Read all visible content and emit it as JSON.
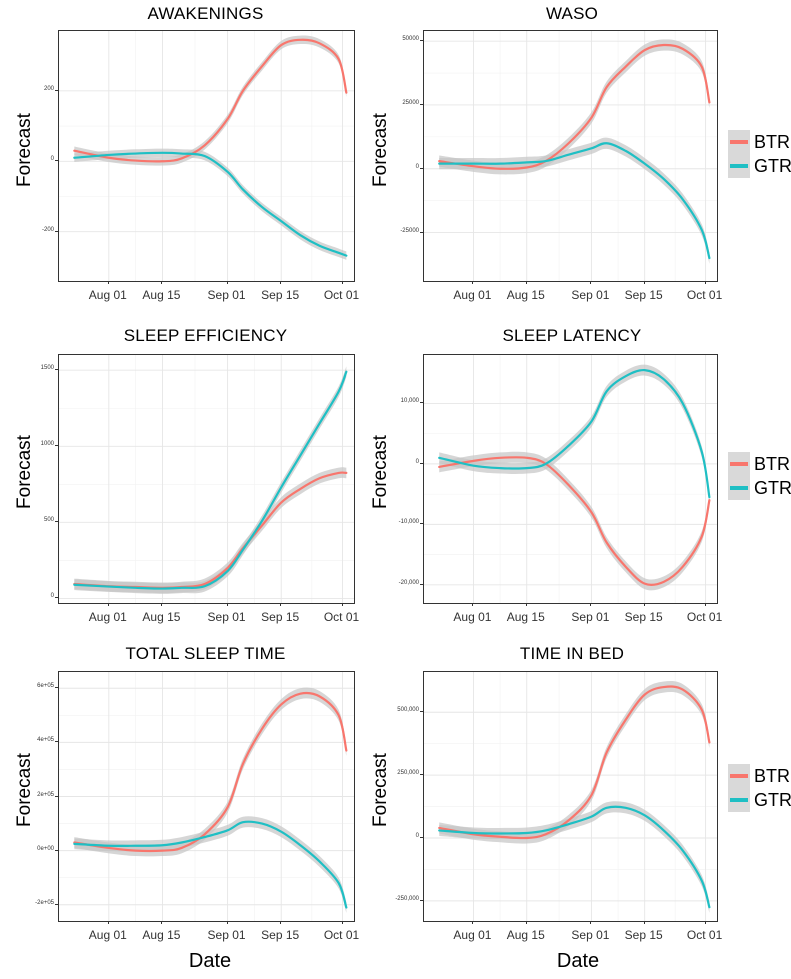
{
  "colors": {
    "BTR": "#f8766d",
    "GTR": "#1fbfc4",
    "band": "#c4c4c4"
  },
  "legend": {
    "items": [
      "BTR",
      "GTR"
    ]
  },
  "x_axis_title": "Date",
  "y_axis_title": "Forecast",
  "x_ticks": [
    "Aug 01",
    "Aug 15",
    "Sep 01",
    "Sep 15",
    "Oct 01"
  ],
  "chart_data": [
    {
      "type": "line",
      "title": "AWAKENINGS",
      "ylabel": "Forecast",
      "xlabel": "",
      "xlim": [
        "2015-07-19",
        "2015-10-04"
      ],
      "ylim": [
        -340,
        370
      ],
      "yticks": [
        {
          "v": -200,
          "l": "-200"
        },
        {
          "v": 0,
          "l": "0"
        },
        {
          "v": 200,
          "l": "200"
        }
      ],
      "xticks": [
        {
          "v": "2015-08-01",
          "l": "Aug 01"
        },
        {
          "v": "2015-08-15",
          "l": "Aug 15"
        },
        {
          "v": "2015-09-01",
          "l": "Sep 01"
        },
        {
          "v": "2015-09-15",
          "l": "Sep 15"
        },
        {
          "v": "2015-10-01",
          "l": "Oct 01"
        }
      ],
      "band": 12,
      "series": [
        {
          "name": "BTR",
          "points": [
            [
              "2015-07-23",
              30
            ],
            [
              "2015-08-01",
              10
            ],
            [
              "2015-08-08",
              2
            ],
            [
              "2015-08-15",
              0
            ],
            [
              "2015-08-20",
              8
            ],
            [
              "2015-08-26",
              45
            ],
            [
              "2015-09-01",
              120
            ],
            [
              "2015-09-05",
              200
            ],
            [
              "2015-09-10",
              270
            ],
            [
              "2015-09-15",
              330
            ],
            [
              "2015-09-20",
              345
            ],
            [
              "2015-09-25",
              335
            ],
            [
              "2015-09-30",
              290
            ],
            [
              "2015-10-02",
              195
            ]
          ]
        },
        {
          "name": "GTR",
          "points": [
            [
              "2015-07-23",
              10
            ],
            [
              "2015-08-01",
              18
            ],
            [
              "2015-08-08",
              22
            ],
            [
              "2015-08-15",
              24
            ],
            [
              "2015-08-20",
              22
            ],
            [
              "2015-08-26",
              15
            ],
            [
              "2015-09-01",
              -30
            ],
            [
              "2015-09-05",
              -80
            ],
            [
              "2015-09-10",
              -130
            ],
            [
              "2015-09-15",
              -170
            ],
            [
              "2015-09-20",
              -210
            ],
            [
              "2015-09-25",
              -240
            ],
            [
              "2015-09-30",
              -260
            ],
            [
              "2015-10-02",
              -268
            ]
          ]
        }
      ]
    },
    {
      "type": "line",
      "title": "WASO",
      "ylabel": "Forecast",
      "xlabel": "",
      "xlim": [
        "2015-07-19",
        "2015-10-04"
      ],
      "ylim": [
        -44000,
        54000
      ],
      "yticks": [
        {
          "v": -25000,
          "l": "-25000"
        },
        {
          "v": 0,
          "l": "0"
        },
        {
          "v": 25000,
          "l": "25000"
        },
        {
          "v": 50000,
          "l": "50000"
        }
      ],
      "xticks": [
        {
          "v": "2015-08-01",
          "l": "Aug 01"
        },
        {
          "v": "2015-08-15",
          "l": "Aug 15"
        },
        {
          "v": "2015-09-01",
          "l": "Sep 01"
        },
        {
          "v": "2015-09-15",
          "l": "Sep 15"
        },
        {
          "v": "2015-10-01",
          "l": "Oct 01"
        }
      ],
      "band": 2200,
      "series": [
        {
          "name": "BTR",
          "points": [
            [
              "2015-07-23",
              3000
            ],
            [
              "2015-08-01",
              1000
            ],
            [
              "2015-08-08",
              0
            ],
            [
              "2015-08-15",
              500
            ],
            [
              "2015-08-20",
              3000
            ],
            [
              "2015-08-26",
              10000
            ],
            [
              "2015-09-01",
              20000
            ],
            [
              "2015-09-05",
              32000
            ],
            [
              "2015-09-10",
              40000
            ],
            [
              "2015-09-15",
              46500
            ],
            [
              "2015-09-20",
              48500
            ],
            [
              "2015-09-25",
              47000
            ],
            [
              "2015-09-30",
              40000
            ],
            [
              "2015-10-02",
              26000
            ]
          ]
        },
        {
          "name": "GTR",
          "points": [
            [
              "2015-07-23",
              2000
            ],
            [
              "2015-08-01",
              2000
            ],
            [
              "2015-08-08",
              2000
            ],
            [
              "2015-08-15",
              2500
            ],
            [
              "2015-08-20",
              3000
            ],
            [
              "2015-08-26",
              5500
            ],
            [
              "2015-09-01",
              8000
            ],
            [
              "2015-09-05",
              10000
            ],
            [
              "2015-09-10",
              7000
            ],
            [
              "2015-09-15",
              2000
            ],
            [
              "2015-09-20",
              -4000
            ],
            [
              "2015-09-25",
              -12000
            ],
            [
              "2015-09-30",
              -24000
            ],
            [
              "2015-10-02",
              -35000
            ]
          ]
        }
      ]
    },
    {
      "type": "line",
      "title": "SLEEP EFFICIENCY",
      "ylabel": "Forecast",
      "xlabel": "",
      "xlim": [
        "2015-07-19",
        "2015-10-04"
      ],
      "ylim": [
        -30,
        1600
      ],
      "yticks": [
        {
          "v": 0,
          "l": "0"
        },
        {
          "v": 500,
          "l": "500"
        },
        {
          "v": 1000,
          "l": "1000"
        },
        {
          "v": 1500,
          "l": "1500"
        }
      ],
      "xticks": [
        {
          "v": "2015-08-01",
          "l": "Aug 01"
        },
        {
          "v": "2015-08-15",
          "l": "Aug 15"
        },
        {
          "v": "2015-09-01",
          "l": "Sep 01"
        },
        {
          "v": "2015-09-15",
          "l": "Sep 15"
        },
        {
          "v": "2015-10-01",
          "l": "Oct 01"
        }
      ],
      "band": 35,
      "series": [
        {
          "name": "BTR",
          "points": [
            [
              "2015-07-23",
              95
            ],
            [
              "2015-08-01",
              80
            ],
            [
              "2015-08-08",
              75
            ],
            [
              "2015-08-15",
              70
            ],
            [
              "2015-08-20",
              75
            ],
            [
              "2015-08-26",
              95
            ],
            [
              "2015-09-01",
              200
            ],
            [
              "2015-09-05",
              330
            ],
            [
              "2015-09-10",
              480
            ],
            [
              "2015-09-15",
              630
            ],
            [
              "2015-09-20",
              720
            ],
            [
              "2015-09-25",
              790
            ],
            [
              "2015-09-30",
              825
            ],
            [
              "2015-10-02",
              825
            ]
          ]
        },
        {
          "name": "GTR",
          "points": [
            [
              "2015-07-23",
              90
            ],
            [
              "2015-08-01",
              78
            ],
            [
              "2015-08-08",
              70
            ],
            [
              "2015-08-15",
              65
            ],
            [
              "2015-08-20",
              70
            ],
            [
              "2015-08-26",
              80
            ],
            [
              "2015-09-01",
              180
            ],
            [
              "2015-09-05",
              320
            ],
            [
              "2015-09-10",
              510
            ],
            [
              "2015-09-15",
              730
            ],
            [
              "2015-09-20",
              940
            ],
            [
              "2015-09-25",
              1150
            ],
            [
              "2015-09-30",
              1360
            ],
            [
              "2015-10-02",
              1490
            ]
          ]
        }
      ]
    },
    {
      "type": "line",
      "title": "SLEEP LATENCY",
      "ylabel": "Forecast",
      "xlabel": "",
      "xlim": [
        "2015-07-19",
        "2015-10-04"
      ],
      "ylim": [
        -23000,
        18000
      ],
      "yticks": [
        {
          "v": -20000,
          "l": "-20,000"
        },
        {
          "v": -10000,
          "l": "-10,000"
        },
        {
          "v": 0,
          "l": "0"
        },
        {
          "v": 10000,
          "l": "10,000"
        }
      ],
      "xticks": [
        {
          "v": "2015-08-01",
          "l": "Aug 01"
        },
        {
          "v": "2015-08-15",
          "l": "Aug 15"
        },
        {
          "v": "2015-09-01",
          "l": "Sep 01"
        },
        {
          "v": "2015-09-15",
          "l": "Sep 15"
        },
        {
          "v": "2015-10-01",
          "l": "Oct 01"
        }
      ],
      "band": 900,
      "series": [
        {
          "name": "BTR",
          "points": [
            [
              "2015-07-23",
              -500
            ],
            [
              "2015-08-01",
              500
            ],
            [
              "2015-08-08",
              1000
            ],
            [
              "2015-08-15",
              1000
            ],
            [
              "2015-08-20",
              0
            ],
            [
              "2015-08-26",
              -3500
            ],
            [
              "2015-09-01",
              -8000
            ],
            [
              "2015-09-05",
              -13000
            ],
            [
              "2015-09-10",
              -17000
            ],
            [
              "2015-09-15",
              -19800
            ],
            [
              "2015-09-20",
              -19500
            ],
            [
              "2015-09-25",
              -17000
            ],
            [
              "2015-09-30",
              -12000
            ],
            [
              "2015-10-02",
              -6000
            ]
          ]
        },
        {
          "name": "GTR",
          "points": [
            [
              "2015-07-23",
              1000
            ],
            [
              "2015-08-01",
              -300
            ],
            [
              "2015-08-08",
              -700
            ],
            [
              "2015-08-15",
              -700
            ],
            [
              "2015-08-20",
              0
            ],
            [
              "2015-08-26",
              3000
            ],
            [
              "2015-09-01",
              7000
            ],
            [
              "2015-09-05",
              12000
            ],
            [
              "2015-09-10",
              14500
            ],
            [
              "2015-09-15",
              15500
            ],
            [
              "2015-09-20",
              14000
            ],
            [
              "2015-09-25",
              10000
            ],
            [
              "2015-09-30",
              2000
            ],
            [
              "2015-10-02",
              -5500
            ]
          ]
        }
      ]
    },
    {
      "type": "line",
      "title": "TOTAL SLEEP TIME",
      "ylabel": "Forecast",
      "xlabel": "",
      "xlim": [
        "2015-07-19",
        "2015-10-04"
      ],
      "ylim": [
        -260000,
        660000
      ],
      "yticks": [
        {
          "v": -200000,
          "l": "-2e+05"
        },
        {
          "v": 0,
          "l": "0e+00"
        },
        {
          "v": 200000,
          "l": "2e+05"
        },
        {
          "v": 400000,
          "l": "4e+05"
        },
        {
          "v": 600000,
          "l": "6e+05"
        }
      ],
      "xticks": [
        {
          "v": "2015-08-01",
          "l": "Aug 01"
        },
        {
          "v": "2015-08-15",
          "l": "Aug 15"
        },
        {
          "v": "2015-09-01",
          "l": "Sep 01"
        },
        {
          "v": "2015-09-15",
          "l": "Sep 15"
        },
        {
          "v": "2015-10-01",
          "l": "Oct 01"
        }
      ],
      "band": 20000,
      "series": [
        {
          "name": "BTR",
          "points": [
            [
              "2015-07-23",
              30000
            ],
            [
              "2015-08-01",
              10000
            ],
            [
              "2015-08-08",
              0
            ],
            [
              "2015-08-15",
              0
            ],
            [
              "2015-08-20",
              10000
            ],
            [
              "2015-08-26",
              60000
            ],
            [
              "2015-09-01",
              160000
            ],
            [
              "2015-09-05",
              320000
            ],
            [
              "2015-09-10",
              450000
            ],
            [
              "2015-09-15",
              540000
            ],
            [
              "2015-09-20",
              580000
            ],
            [
              "2015-09-25",
              570000
            ],
            [
              "2015-09-30",
              500000
            ],
            [
              "2015-10-02",
              370000
            ]
          ]
        },
        {
          "name": "GTR",
          "points": [
            [
              "2015-07-23",
              25000
            ],
            [
              "2015-08-01",
              18000
            ],
            [
              "2015-08-08",
              18000
            ],
            [
              "2015-08-15",
              20000
            ],
            [
              "2015-08-20",
              30000
            ],
            [
              "2015-08-26",
              50000
            ],
            [
              "2015-09-01",
              75000
            ],
            [
              "2015-09-05",
              105000
            ],
            [
              "2015-09-10",
              100000
            ],
            [
              "2015-09-15",
              70000
            ],
            [
              "2015-09-20",
              20000
            ],
            [
              "2015-09-25",
              -40000
            ],
            [
              "2015-09-30",
              -120000
            ],
            [
              "2015-10-02",
              -210000
            ]
          ]
        }
      ]
    },
    {
      "type": "line",
      "title": "TIME IN BED",
      "ylabel": "Forecast",
      "xlabel": "",
      "xlim": [
        "2015-07-19",
        "2015-10-04"
      ],
      "ylim": [
        -330000,
        660000
      ],
      "yticks": [
        {
          "v": -250000,
          "l": "-250,000"
        },
        {
          "v": 0,
          "l": "0"
        },
        {
          "v": 250000,
          "l": "250,000"
        },
        {
          "v": 500000,
          "l": "500,000"
        }
      ],
      "xticks": [
        {
          "v": "2015-08-01",
          "l": "Aug 01"
        },
        {
          "v": "2015-08-15",
          "l": "Aug 15"
        },
        {
          "v": "2015-09-01",
          "l": "Sep 01"
        },
        {
          "v": "2015-09-15",
          "l": "Sep 15"
        },
        {
          "v": "2015-10-01",
          "l": "Oct 01"
        }
      ],
      "band": 22000,
      "series": [
        {
          "name": "BTR",
          "points": [
            [
              "2015-07-23",
              40000
            ],
            [
              "2015-08-01",
              15000
            ],
            [
              "2015-08-08",
              5000
            ],
            [
              "2015-08-15",
              0
            ],
            [
              "2015-08-20",
              15000
            ],
            [
              "2015-08-26",
              70000
            ],
            [
              "2015-09-01",
              170000
            ],
            [
              "2015-09-05",
              340000
            ],
            [
              "2015-09-10",
              470000
            ],
            [
              "2015-09-15",
              570000
            ],
            [
              "2015-09-20",
              600000
            ],
            [
              "2015-09-25",
              590000
            ],
            [
              "2015-09-30",
              510000
            ],
            [
              "2015-10-02",
              380000
            ]
          ]
        },
        {
          "name": "GTR",
          "points": [
            [
              "2015-07-23",
              30000
            ],
            [
              "2015-08-01",
              20000
            ],
            [
              "2015-08-08",
              18000
            ],
            [
              "2015-08-15",
              20000
            ],
            [
              "2015-08-20",
              30000
            ],
            [
              "2015-08-26",
              55000
            ],
            [
              "2015-09-01",
              85000
            ],
            [
              "2015-09-05",
              120000
            ],
            [
              "2015-09-10",
              120000
            ],
            [
              "2015-09-15",
              90000
            ],
            [
              "2015-09-20",
              30000
            ],
            [
              "2015-09-25",
              -50000
            ],
            [
              "2015-09-30",
              -170000
            ],
            [
              "2015-10-02",
              -275000
            ]
          ]
        }
      ]
    }
  ]
}
